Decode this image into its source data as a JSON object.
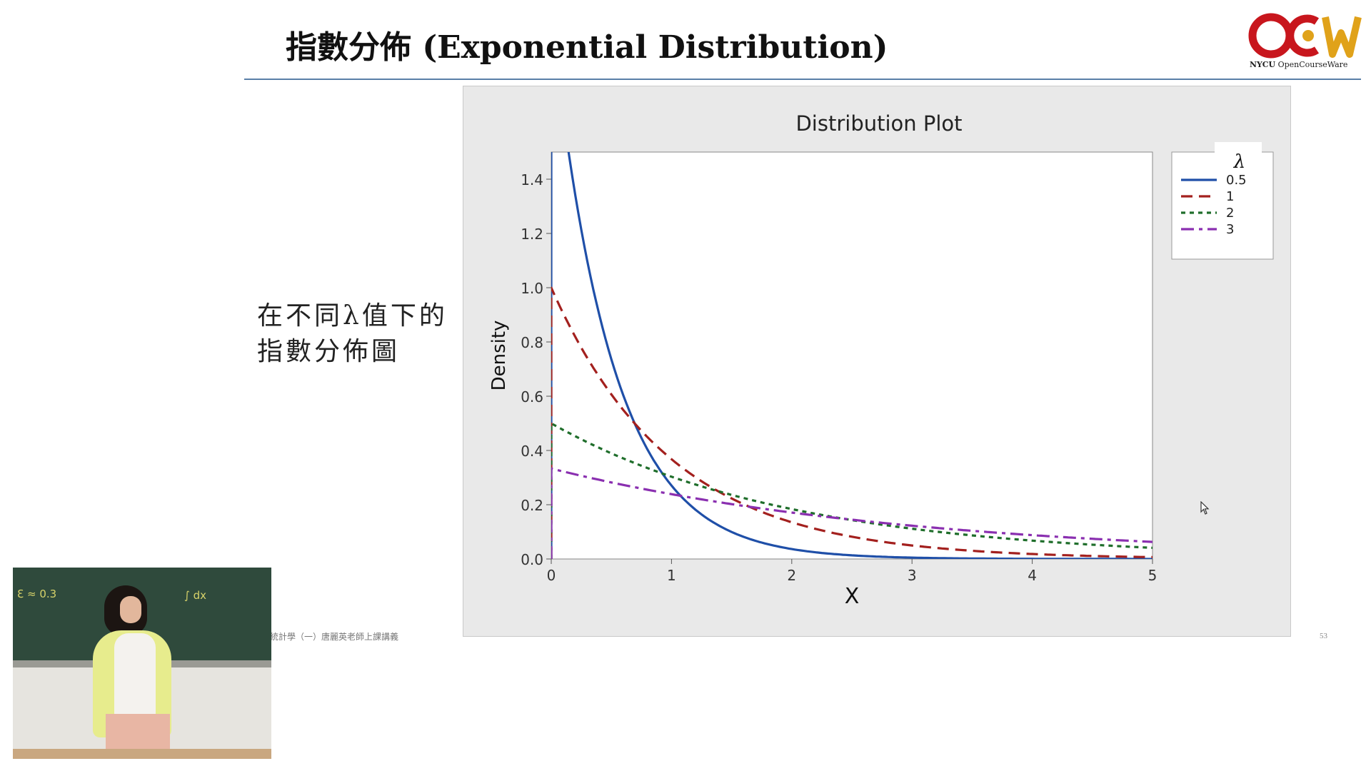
{
  "slide": {
    "title": "指數分佈 (Exponential Distribution)",
    "caption_lines": [
      "在不同λ值下的",
      "指數分佈圖"
    ],
    "footer": "統計學（一）唐麗英老師上課講義",
    "page_number": "53",
    "logo": {
      "text": "NYCU",
      "subtext": "OpenCourseWare",
      "icon": "ocw-logo-icon"
    }
  },
  "chart_data": {
    "type": "line",
    "title": "Distribution Plot",
    "xlabel": "X",
    "ylabel": "Density",
    "xlim": [
      0,
      5
    ],
    "ylim": [
      0,
      1.5
    ],
    "x_ticks": [
      0,
      1,
      2,
      3,
      4,
      5
    ],
    "x_tick_labels": [
      "0",
      "1",
      "2",
      "3",
      "4",
      "5"
    ],
    "y_ticks": [
      0,
      0.2,
      0.4,
      0.6,
      0.8,
      1.0,
      1.2,
      1.4
    ],
    "y_tick_labels": [
      "0.0",
      "0.2",
      "0.4",
      "0.6",
      "0.8",
      "1.0",
      "1.2",
      "1.4"
    ],
    "grid": false,
    "legend": {
      "title": "λ",
      "position": "right-top"
    },
    "x": [
      0,
      0.25,
      0.5,
      0.75,
      1,
      1.25,
      1.5,
      1.75,
      2,
      2.25,
      2.5,
      2.75,
      3,
      3.25,
      3.5,
      3.75,
      4,
      4.25,
      4.5,
      4.75,
      5
    ],
    "series": [
      {
        "name": "0.5",
        "color": "#1f4fa8",
        "dash": "solid",
        "values": [
          2.0,
          1.213,
          0.736,
          0.446,
          0.271,
          0.164,
          0.0996,
          0.0604,
          0.0366,
          0.0222,
          0.0135,
          0.0082,
          0.005,
          0.003,
          0.0018,
          0.0011,
          0.0007,
          0.0004,
          0.0002,
          0.0002,
          0.0001
        ]
      },
      {
        "name": "1",
        "color": "#a3201e",
        "dash": "dashed",
        "values": [
          1.0,
          0.779,
          0.607,
          0.472,
          0.368,
          0.287,
          0.223,
          0.174,
          0.135,
          0.105,
          0.082,
          0.064,
          0.05,
          0.039,
          0.03,
          0.024,
          0.018,
          0.014,
          0.011,
          0.009,
          0.007
        ]
      },
      {
        "name": "2",
        "color": "#1f6e2b",
        "dash": "dotted",
        "values": [
          0.5,
          0.441,
          0.389,
          0.344,
          0.303,
          0.268,
          0.236,
          0.208,
          0.184,
          0.162,
          0.143,
          0.126,
          0.112,
          0.098,
          0.087,
          0.077,
          0.068,
          0.06,
          0.053,
          0.046,
          0.041
        ]
      },
      {
        "name": "3",
        "color": "#8a2fb0",
        "dash": "dashdot",
        "values": [
          0.333,
          0.307,
          0.283,
          0.26,
          0.239,
          0.22,
          0.202,
          0.186,
          0.171,
          0.158,
          0.145,
          0.133,
          0.123,
          0.113,
          0.104,
          0.096,
          0.088,
          0.081,
          0.074,
          0.068,
          0.063
        ]
      }
    ]
  }
}
